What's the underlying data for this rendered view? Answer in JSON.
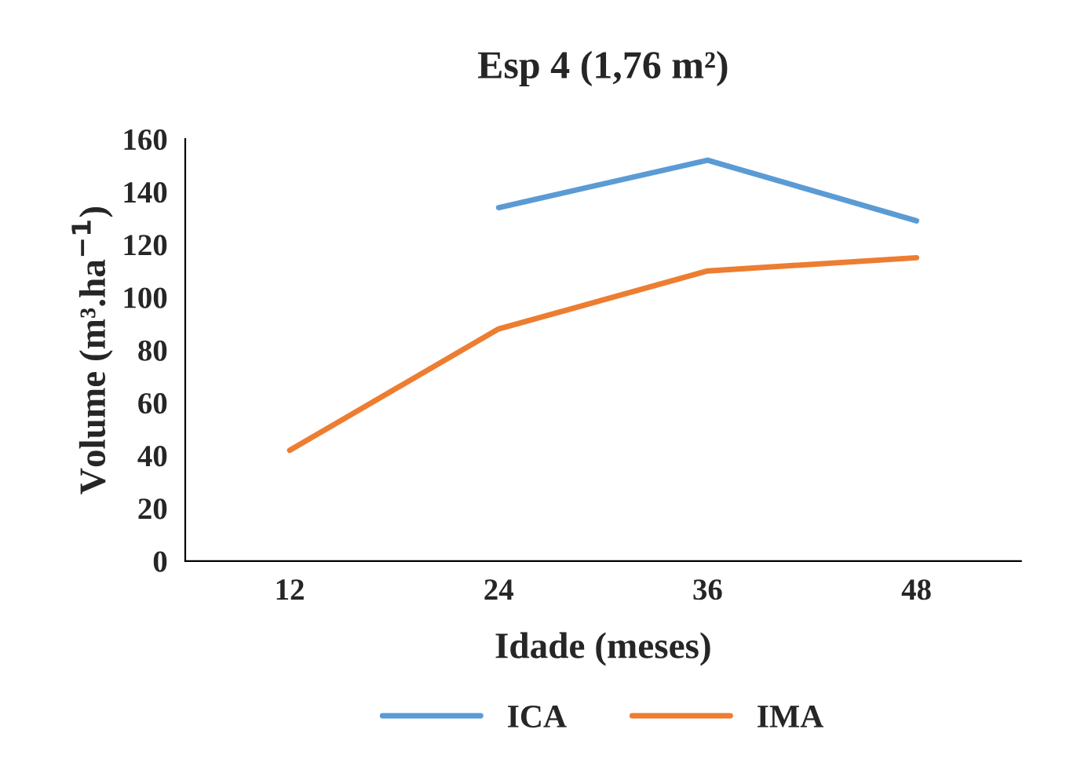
{
  "chart_data": {
    "type": "line",
    "title": "Esp 4 (1,76 m²)",
    "xlabel": "Idade (meses)",
    "ylabel": "Volume (m³.ha$^{−1}$)",
    "categories": [
      "12",
      "24",
      "36",
      "48"
    ],
    "series": [
      {
        "name": "ICA",
        "color": "#5b9bd5",
        "values": [
          null,
          134,
          152,
          129
        ]
      },
      {
        "name": "IMA",
        "color": "#ed7d31",
        "values": [
          42,
          88,
          110,
          115
        ]
      }
    ],
    "ylim": [
      0,
      160
    ],
    "yticks": [
      0,
      20,
      40,
      60,
      80,
      100,
      120,
      140,
      160
    ],
    "grid": false,
    "legend": "bottom"
  }
}
